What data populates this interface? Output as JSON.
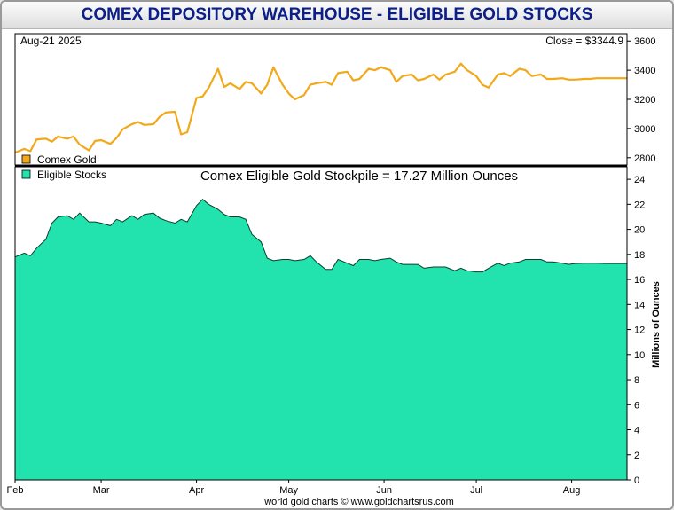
{
  "header": {
    "title": "COMEX DEPOSITORY WAREHOUSE - ELIGIBLE GOLD STOCKS"
  },
  "top_panel": {
    "date_label": "Aug-21  2025",
    "close_label": "Close = $3344.9"
  },
  "bottom_panel": {
    "annotation": "Comex Eligible Gold Stockpile = 17.27 Million Ounces",
    "ylabel": "Millions of Ounces"
  },
  "footer": {
    "credit": "world gold charts © www.goldchartsrus.com"
  },
  "colors": {
    "gold_line": "#f2a818",
    "stocks_fill": "#22e3ad",
    "title_text": "#0b1f8a"
  },
  "chart_data": [
    {
      "type": "line",
      "title": "",
      "series": [
        {
          "name": "Comex Gold",
          "x": [
            0,
            3,
            5,
            7,
            10,
            12,
            14,
            17,
            19,
            21,
            24,
            26,
            28,
            31,
            33,
            35,
            38,
            40,
            42,
            45,
            47,
            49,
            52,
            54,
            56,
            59,
            61,
            63,
            66,
            68,
            70,
            73,
            75,
            77,
            80,
            82,
            84,
            87,
            89,
            91,
            94,
            96,
            98,
            101,
            103,
            105,
            108,
            110,
            112,
            115,
            117,
            119,
            122,
            124,
            126,
            129,
            131,
            133,
            136,
            138,
            140,
            143,
            145,
            147,
            150,
            152,
            154,
            157,
            159,
            161,
            164,
            166,
            168,
            171,
            173,
            175,
            178,
            180,
            182,
            185,
            187,
            189,
            192,
            194,
            196,
            199
          ],
          "values": [
            2835,
            2860,
            2845,
            2925,
            2930,
            2910,
            2945,
            2930,
            2945,
            2890,
            2850,
            2915,
            2920,
            2895,
            2935,
            2995,
            3030,
            3045,
            3025,
            3030,
            3080,
            3110,
            3115,
            2960,
            2975,
            3210,
            3220,
            3280,
            3410,
            3285,
            3310,
            3270,
            3320,
            3310,
            3240,
            3300,
            3420,
            3300,
            3240,
            3200,
            3230,
            3300,
            3310,
            3320,
            3300,
            3380,
            3390,
            3330,
            3340,
            3410,
            3400,
            3420,
            3400,
            3320,
            3360,
            3370,
            3330,
            3340,
            3370,
            3335,
            3370,
            3390,
            3445,
            3400,
            3360,
            3300,
            3280,
            3370,
            3380,
            3360,
            3410,
            3400,
            3360,
            3370,
            3340,
            3340,
            3344.9,
            3335,
            3335,
            3340,
            3340,
            3345,
            3345,
            3345,
            3345,
            3344.9
          ],
          "color": "#f2a818"
        }
      ],
      "ylim": [
        2750,
        3650
      ],
      "y_ticks": [
        2800,
        3000,
        3200,
        3400,
        3600
      ],
      "ylabel": "",
      "legend": [
        "Comex Gold",
        "Eligible Stocks"
      ],
      "legend_position": "bottom-left"
    },
    {
      "type": "area",
      "title": "Comex Eligible Gold Stockpile = 17.27 Million Ounces",
      "series": [
        {
          "name": "Eligible Stocks",
          "x": [
            0,
            3,
            5,
            7,
            10,
            12,
            14,
            17,
            19,
            21,
            24,
            26,
            28,
            31,
            33,
            35,
            38,
            40,
            42,
            45,
            47,
            49,
            52,
            54,
            56,
            59,
            61,
            63,
            66,
            68,
            70,
            73,
            75,
            77,
            80,
            82,
            84,
            87,
            89,
            91,
            94,
            96,
            98,
            101,
            103,
            105,
            108,
            110,
            112,
            115,
            117,
            119,
            122,
            124,
            126,
            129,
            131,
            133,
            136,
            138,
            140,
            143,
            145,
            147,
            150,
            152,
            154,
            157,
            159,
            161,
            164,
            166,
            168,
            171,
            173,
            175,
            178,
            180,
            182,
            185,
            187,
            189,
            192,
            194,
            196,
            199
          ],
          "values": [
            17.8,
            18.1,
            17.9,
            18.5,
            19.2,
            20.5,
            21.0,
            21.1,
            20.8,
            21.3,
            20.6,
            20.6,
            20.5,
            20.3,
            20.8,
            20.6,
            21.1,
            20.8,
            21.2,
            21.3,
            20.9,
            20.7,
            20.5,
            20.8,
            20.6,
            21.9,
            22.4,
            22.0,
            21.6,
            21.2,
            21.0,
            21.0,
            20.8,
            19.6,
            19.0,
            17.7,
            17.5,
            17.6,
            17.6,
            17.5,
            17.6,
            17.9,
            17.4,
            16.8,
            16.8,
            17.6,
            17.3,
            17.1,
            17.6,
            17.6,
            17.5,
            17.6,
            17.7,
            17.4,
            17.2,
            17.2,
            17.2,
            16.9,
            17.0,
            17.0,
            17.0,
            16.7,
            16.9,
            16.7,
            16.6,
            16.6,
            16.9,
            17.3,
            17.1,
            17.3,
            17.4,
            17.6,
            17.6,
            17.6,
            17.4,
            17.4,
            17.3,
            17.2,
            17.27,
            17.3,
            17.3,
            17.3,
            17.27,
            17.27,
            17.27,
            17.27
          ],
          "color": "#22e3ad"
        }
      ],
      "ylim": [
        0,
        25
      ],
      "y_ticks": [
        0,
        2,
        4,
        6,
        8,
        10,
        12,
        14,
        16,
        18,
        20,
        22,
        24
      ],
      "ylabel": "Millions of Ounces",
      "xaxis": {
        "range": [
          0,
          199
        ],
        "ticks": [
          {
            "label": "Feb",
            "x": 0
          },
          {
            "label": "Mar",
            "x": 28
          },
          {
            "label": "Apr",
            "x": 59
          },
          {
            "label": "May",
            "x": 89
          },
          {
            "label": "Jun",
            "x": 120
          },
          {
            "label": "Jul",
            "x": 150
          },
          {
            "label": "Aug",
            "x": 181
          }
        ]
      },
      "grid": false
    }
  ]
}
